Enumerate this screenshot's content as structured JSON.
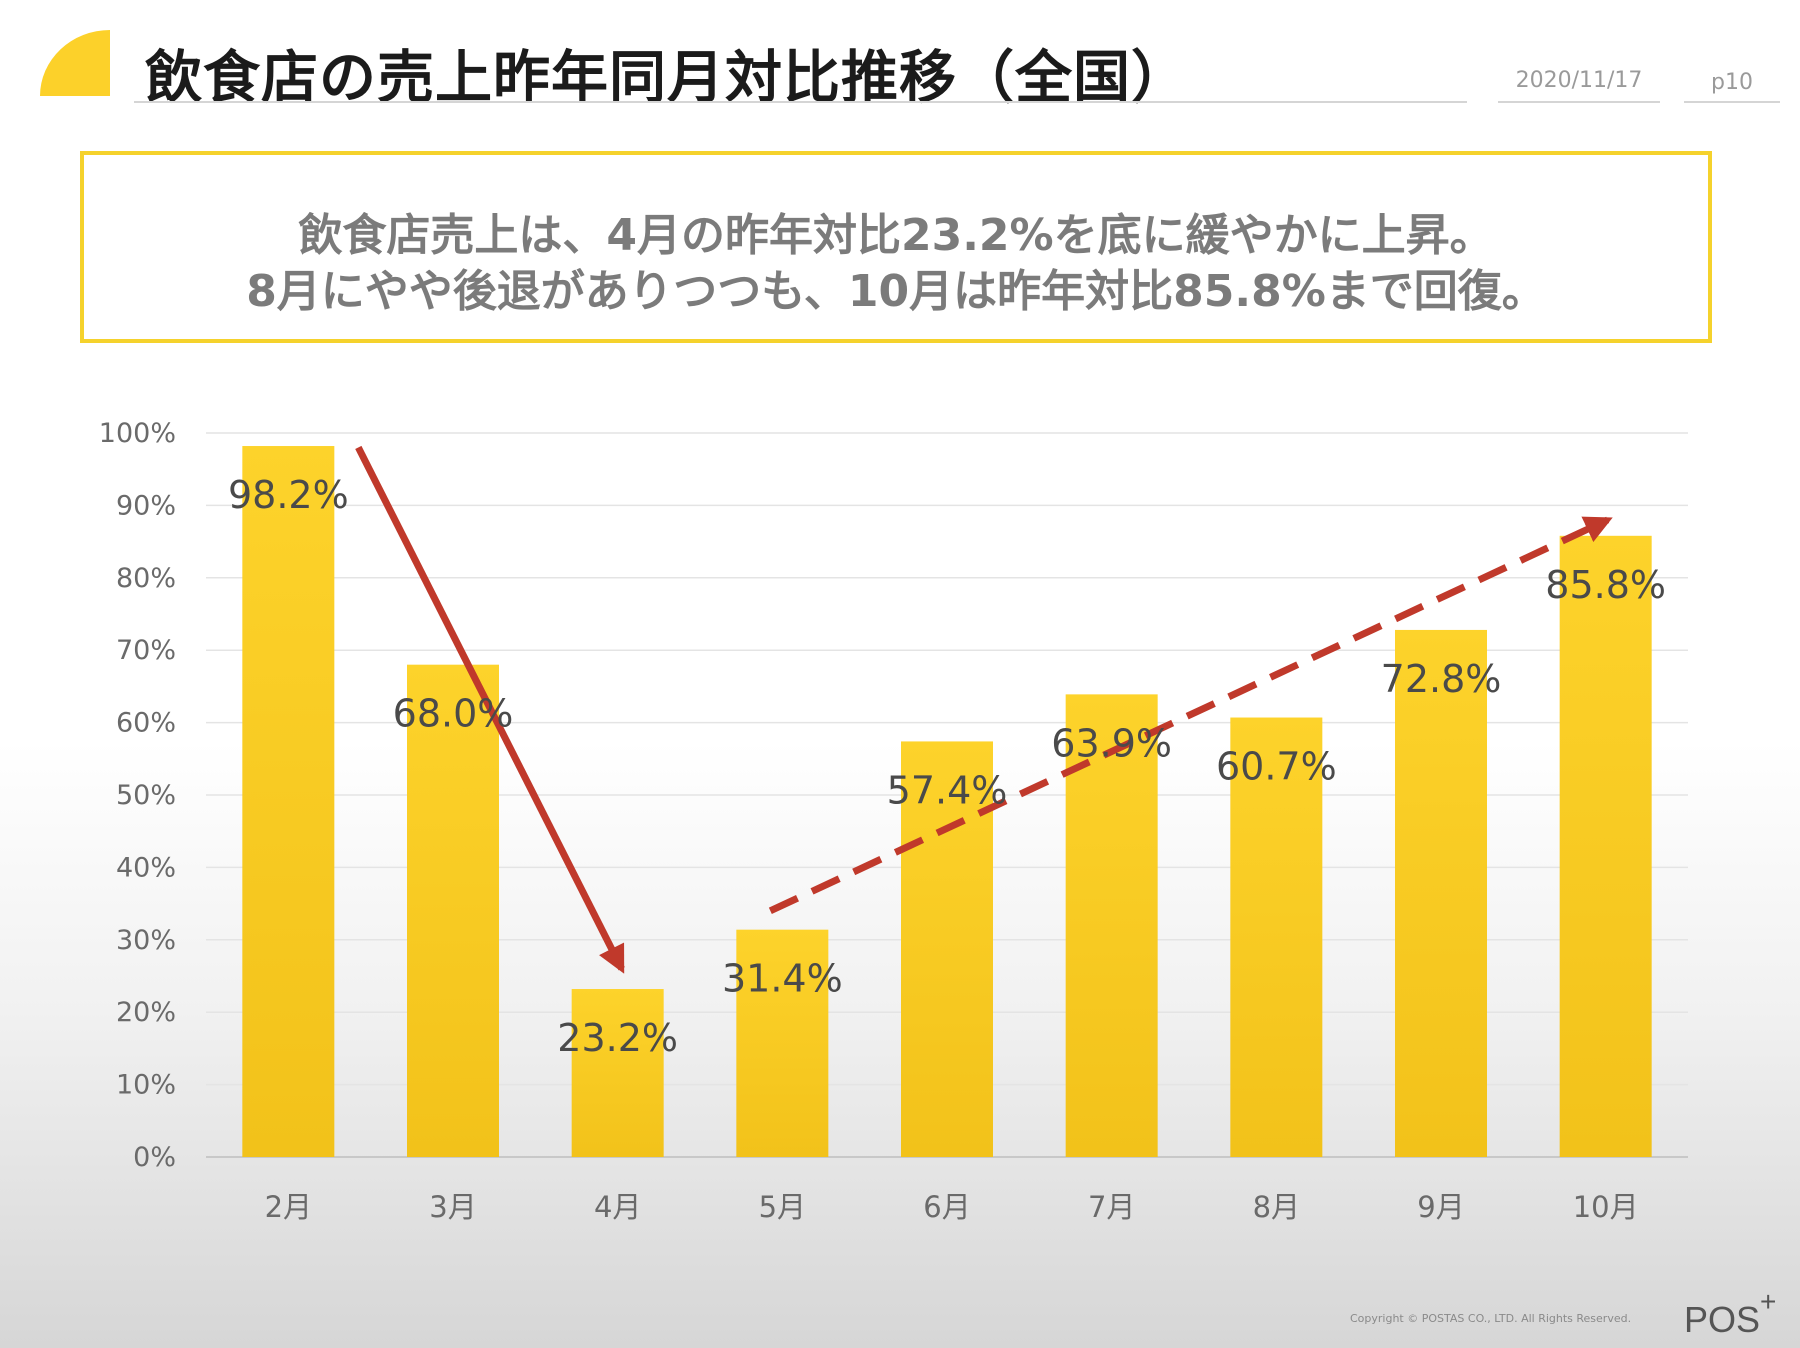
{
  "header": {
    "title": "飲食店の売上昨年同月対比推移（全国）",
    "date": "2020/11/17",
    "page": "p10"
  },
  "summary": {
    "line1": "飲食店売上は、4月の昨年対比23.2%を底に緩やかに上昇。",
    "line2": "8月にやや後退がありつつも、10月は昨年対比85.8%まで回復。"
  },
  "footer": {
    "copyright": "Copyright © POSTAS CO., LTD. All Rights Reserved.",
    "brand": "POS",
    "brand_sup": "+"
  },
  "colors": {
    "bar": "#fcd12a",
    "arrow": "#c0392b",
    "accent": "#f5d22c"
  },
  "chart_data": {
    "type": "bar",
    "categories": [
      "2月",
      "3月",
      "4月",
      "5月",
      "6月",
      "7月",
      "8月",
      "9月",
      "10月"
    ],
    "values": [
      98.2,
      68.0,
      23.2,
      31.4,
      57.4,
      63.9,
      60.7,
      72.8,
      85.8
    ],
    "data_labels": [
      "98.2%",
      "68.0%",
      "23.2%",
      "31.4%",
      "57.4%",
      "63.9%",
      "60.7%",
      "72.8%",
      "85.8%"
    ],
    "yticks": [
      "0%",
      "10%",
      "20%",
      "30%",
      "40%",
      "50%",
      "60%",
      "70%",
      "80%",
      "90%",
      "100%"
    ],
    "ylim": [
      0,
      100
    ],
    "grid": true,
    "annotations": [
      {
        "type": "arrow",
        "style": "solid",
        "from": {
          "category": "2月",
          "value": 98
        },
        "to": {
          "category": "4月",
          "value": 26
        }
      },
      {
        "type": "arrow",
        "style": "dashed",
        "from": {
          "category": "5月",
          "value": 34
        },
        "to": {
          "category": "10月",
          "value": 88
        }
      }
    ]
  }
}
